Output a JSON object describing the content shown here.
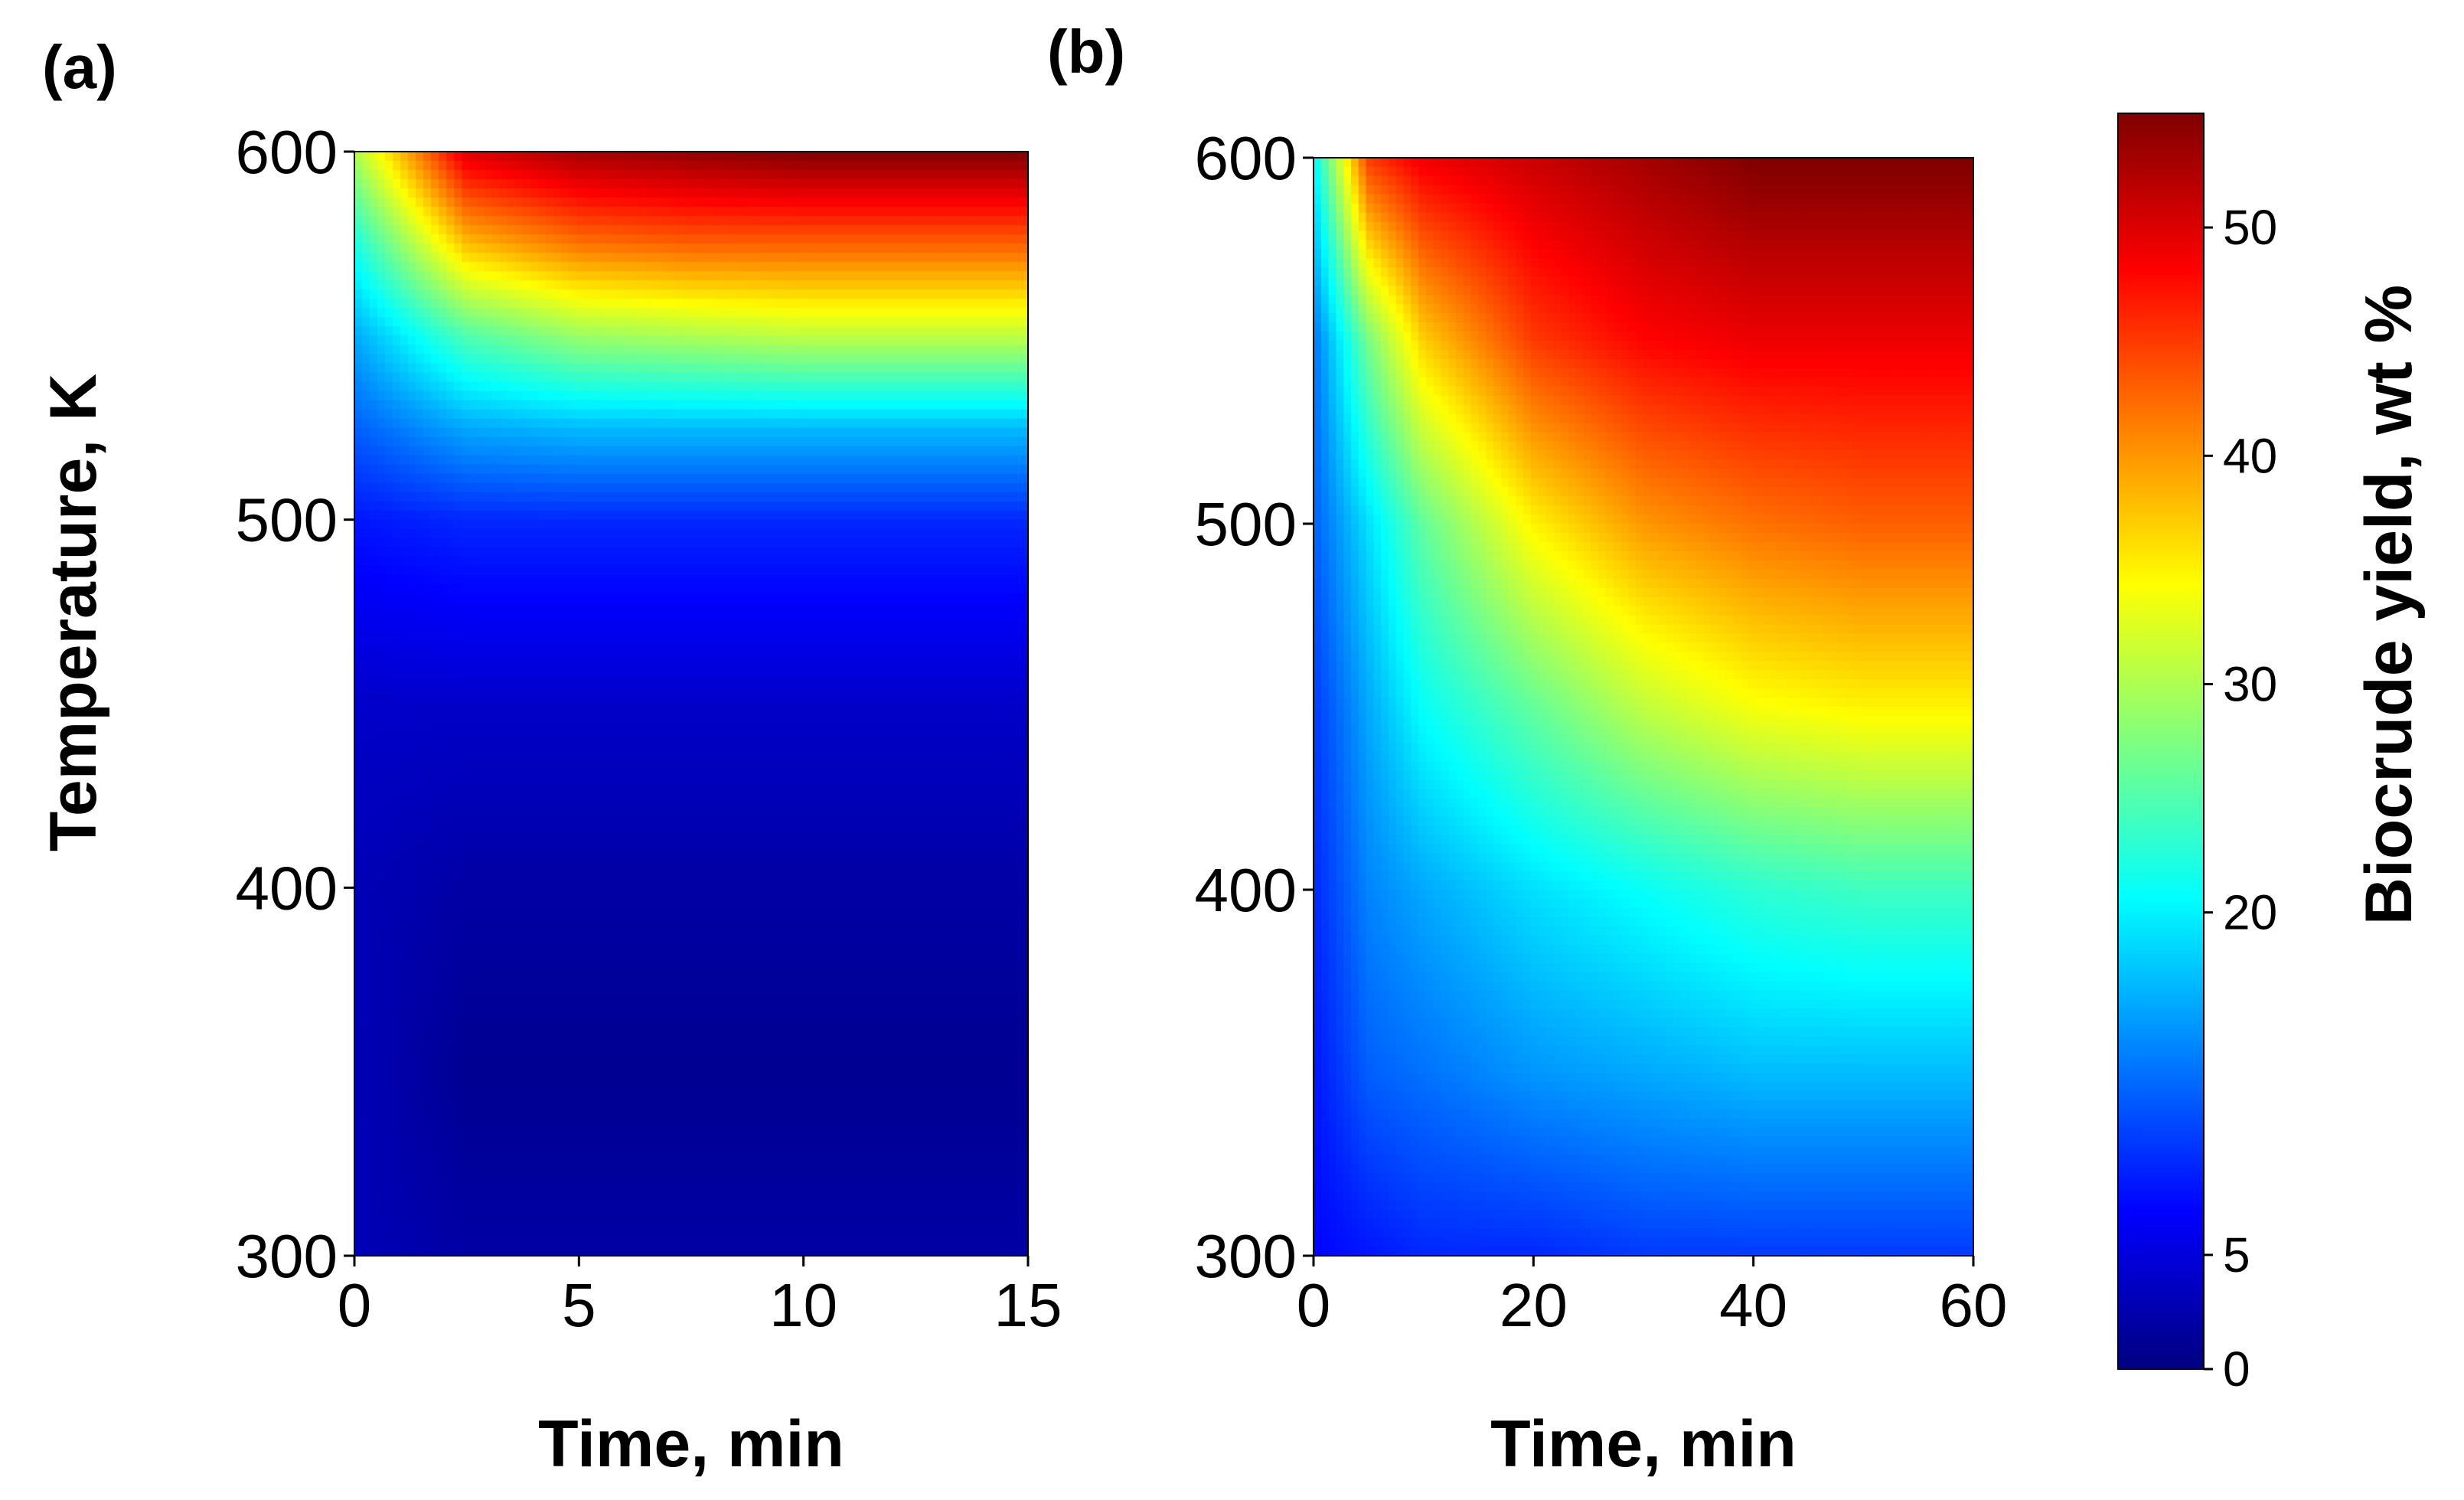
{
  "figure": {
    "colorbar": {
      "label": "Biocrude yield, wt %",
      "range": [
        0,
        55
      ],
      "ticks": [
        0,
        5,
        20,
        30,
        40,
        50
      ],
      "colormap": "jet",
      "colors": [
        "#00007f",
        "#0000ff",
        "#00ffff",
        "#ffff00",
        "#ff0000",
        "#7f0000"
      ]
    }
  },
  "chart_data": [
    {
      "type": "heatmap",
      "panel_label": "(a)",
      "xlabel": "Time, min",
      "ylabel": "Temperature, K",
      "xlim": [
        0,
        15
      ],
      "ylim": [
        300,
        600
      ],
      "xticks": [
        0,
        5,
        10,
        15
      ],
      "yticks": [
        300,
        400,
        500,
        600
      ],
      "value_label": "Biocrude yield, wt %",
      "x": [
        0,
        2.5,
        5,
        7.5,
        10,
        12.5,
        15
      ],
      "y": [
        300,
        350,
        400,
        450,
        500,
        525,
        550,
        575,
        600
      ],
      "z": [
        [
          3,
          2,
          2,
          2,
          2,
          2,
          2
        ],
        [
          3,
          1,
          1,
          1,
          1,
          1,
          1
        ],
        [
          3,
          2,
          2,
          2,
          2,
          2,
          2
        ],
        [
          4,
          4,
          4,
          4,
          4,
          4,
          4
        ],
        [
          8,
          9,
          9,
          9,
          9,
          9,
          9
        ],
        [
          12,
          16,
          17,
          17,
          17,
          17,
          17
        ],
        [
          16,
          25,
          29,
          30,
          31,
          31,
          31
        ],
        [
          22,
          38,
          42,
          43,
          43,
          43,
          43
        ],
        [
          30,
          50,
          53,
          54,
          55,
          55,
          55
        ]
      ]
    },
    {
      "type": "heatmap",
      "panel_label": "(b)",
      "xlabel": "Time, min",
      "ylabel": "",
      "xlim": [
        0,
        60
      ],
      "ylim": [
        300,
        600
      ],
      "xticks": [
        0,
        20,
        40,
        60
      ],
      "yticks": [
        300,
        400,
        500,
        600
      ],
      "value_label": "Biocrude yield, wt %",
      "x": [
        0,
        5,
        10,
        20,
        30,
        40,
        50,
        60
      ],
      "y": [
        300,
        350,
        400,
        450,
        500,
        550,
        600
      ],
      "z": [
        [
          7,
          8,
          9,
          9,
          10,
          10,
          10,
          10
        ],
        [
          8,
          12,
          13,
          15,
          16,
          17,
          17,
          17
        ],
        [
          9,
          14,
          16,
          19,
          21,
          23,
          24,
          24
        ],
        [
          10,
          16,
          21,
          26,
          31,
          34,
          35,
          35
        ],
        [
          12,
          19,
          26,
          35,
          40,
          42,
          43,
          43
        ],
        [
          13,
          27,
          37,
          45,
          48,
          49,
          49,
          49
        ],
        [
          20,
          45,
          49,
          51,
          53,
          55,
          55,
          55
        ]
      ]
    }
  ]
}
